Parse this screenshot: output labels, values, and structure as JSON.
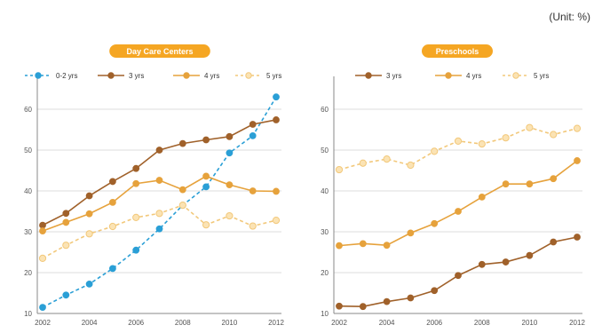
{
  "unit_label": "(Unit: %)",
  "chart_data": [
    {
      "type": "line",
      "title": "Day Care Centers",
      "x": [
        2002,
        2003,
        2004,
        2005,
        2006,
        2007,
        2008,
        2009,
        2010,
        2011,
        2012
      ],
      "xticks": [
        2002,
        2004,
        2006,
        2008,
        2010,
        2012
      ],
      "ylim": [
        10,
        65
      ],
      "yticks": [
        10,
        20,
        30,
        40,
        50,
        60
      ],
      "grid": true,
      "legend_position": "top",
      "series": [
        {
          "name": "0-2 yrs",
          "color": "#2a9fd6",
          "dashed": true,
          "marker_filled": true,
          "values": [
            11.5,
            14.5,
            17.2,
            21.0,
            25.5,
            30.7,
            36.5,
            41.0,
            49.3,
            53.5,
            63.0
          ]
        },
        {
          "name": "3 yrs",
          "color": "#a0612a",
          "dashed": false,
          "marker_filled": true,
          "values": [
            31.6,
            34.5,
            38.8,
            42.3,
            45.5,
            50.0,
            51.6,
            52.5,
            53.3,
            56.3,
            57.4
          ]
        },
        {
          "name": "4 yrs",
          "color": "#e6a23c",
          "dashed": false,
          "marker_filled": true,
          "values": [
            30.2,
            32.3,
            34.4,
            37.2,
            41.8,
            42.6,
            40.3,
            43.6,
            41.5,
            40.0,
            39.9
          ]
        },
        {
          "name": "5 yrs",
          "color": "#f2c87a",
          "dashed": true,
          "marker_filled": false,
          "values": [
            23.5,
            26.7,
            29.5,
            31.3,
            33.5,
            34.5,
            36.5,
            31.7,
            33.9,
            31.4,
            32.8
          ]
        }
      ]
    },
    {
      "type": "line",
      "title": "Preschools",
      "x": [
        2002,
        2003,
        2004,
        2005,
        2006,
        2007,
        2008,
        2009,
        2010,
        2011,
        2012
      ],
      "xticks": [
        2002,
        2004,
        2006,
        2008,
        2010,
        2012
      ],
      "ylim": [
        10,
        65
      ],
      "yticks": [
        10,
        20,
        30,
        40,
        50,
        60
      ],
      "grid": true,
      "legend_position": "top",
      "series": [
        {
          "name": "3 yrs",
          "color": "#a0612a",
          "dashed": false,
          "marker_filled": true,
          "values": [
            11.8,
            11.7,
            12.9,
            13.8,
            15.6,
            19.3,
            22.0,
            22.6,
            24.2,
            27.5,
            28.7
          ]
        },
        {
          "name": "4 yrs",
          "color": "#e6a23c",
          "dashed": false,
          "marker_filled": true,
          "values": [
            26.6,
            27.1,
            26.7,
            29.7,
            32.0,
            35.0,
            38.5,
            41.7,
            41.7,
            43.0,
            47.4
          ]
        },
        {
          "name": "5 yrs",
          "color": "#f2c87a",
          "dashed": true,
          "marker_filled": false,
          "values": [
            45.2,
            46.8,
            47.8,
            46.3,
            49.7,
            52.2,
            51.5,
            53.0,
            55.5,
            53.8,
            55.3
          ]
        }
      ]
    }
  ]
}
